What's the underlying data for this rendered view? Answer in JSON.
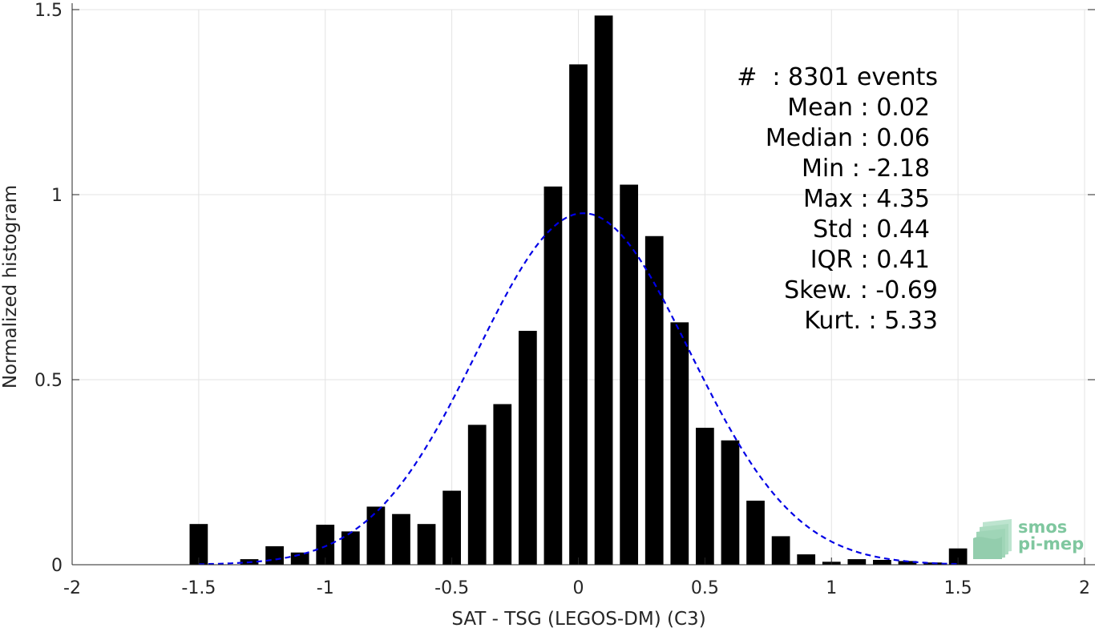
{
  "chart_data": {
    "type": "bar",
    "title": "",
    "xlabel": "SAT - TSG (LEGOS-DM) (C3)",
    "ylabel": "Normalized histogram",
    "xlim": [
      -2,
      2
    ],
    "ylim": [
      0,
      1.5
    ],
    "xticks": [
      -2,
      -1.5,
      -1,
      -0.5,
      0,
      0.5,
      1,
      1.5,
      2
    ],
    "xtick_labels": [
      "-2",
      "-1.5",
      "-1",
      "-0.5",
      "0",
      "0.5",
      "1",
      "1.5",
      "2"
    ],
    "yticks": [
      0,
      0.5,
      1,
      1.5
    ],
    "ytick_labels": [
      "0",
      "0.5",
      "1",
      "1.5"
    ],
    "grid": true,
    "bar_color": "#000000",
    "bin_width": 0.1,
    "bars": {
      "x": [
        -1.5,
        -1.3,
        -1.2,
        -1.1,
        -1.0,
        -0.9,
        -0.8,
        -0.7,
        -0.6,
        -0.5,
        -0.4,
        -0.3,
        -0.2,
        -0.1,
        0.0,
        0.1,
        0.2,
        0.3,
        0.4,
        0.5,
        0.6,
        0.7,
        0.8,
        0.9,
        1.0,
        1.1,
        1.2,
        1.3,
        1.4,
        1.5
      ],
      "values": [
        0.11,
        0.015,
        0.05,
        0.033,
        0.108,
        0.09,
        0.157,
        0.137,
        0.11,
        0.2,
        0.378,
        0.434,
        0.632,
        1.022,
        1.352,
        1.484,
        1.027,
        0.888,
        0.655,
        0.37,
        0.336,
        0.173,
        0.077,
        0.028,
        0.008,
        0.015,
        0.013,
        0.01,
        0.006,
        0.044
      ]
    },
    "fit_curve": {
      "style": "dashed",
      "color": "#0000e6",
      "mean": 0.02,
      "std": 0.42,
      "x_range": [
        -1.5,
        1.5
      ]
    },
    "annotations": [
      "#  : 8301 events",
      "Mean : 0.02",
      "Median : 0.06",
      "Min : -2.18",
      "Max : 4.35",
      "Std : 0.44",
      "IQR : 0.41",
      "Skew. : -0.69",
      "Kurt. : 5.33"
    ]
  },
  "logo": {
    "line1": "smos",
    "line2": "pi-mep",
    "color": "#7fc79f"
  }
}
